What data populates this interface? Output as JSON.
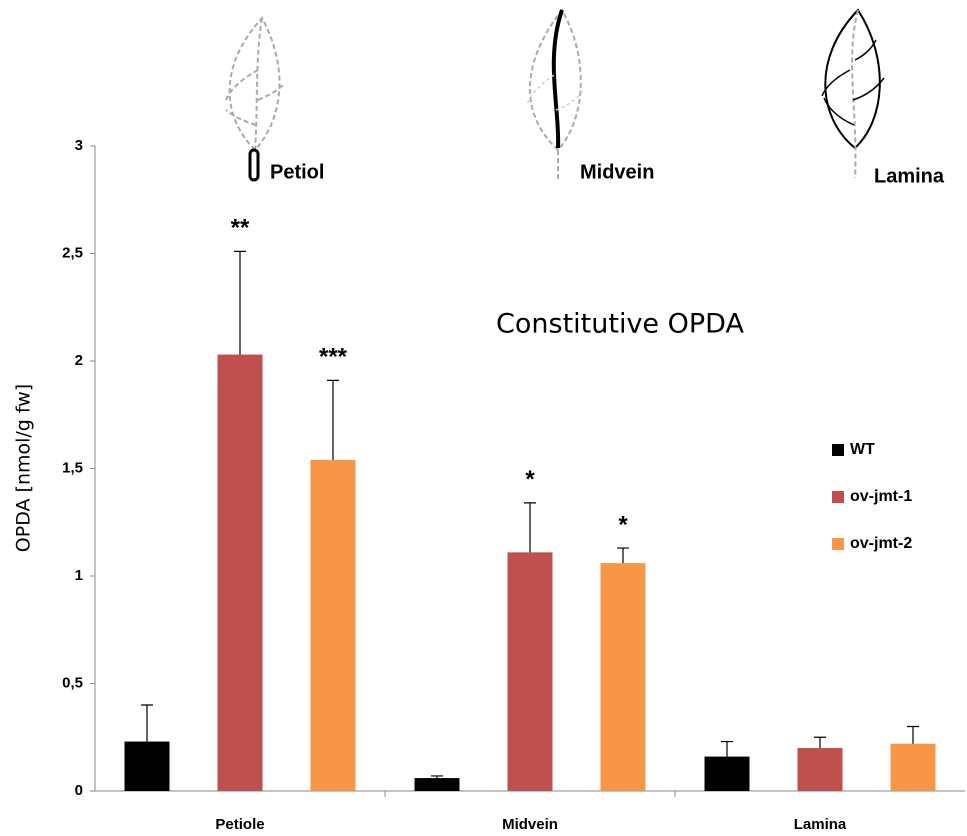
{
  "chart_data": {
    "type": "bar",
    "title": "Constitutive OPDA",
    "y_label": "OPDA [nmol/g fw]",
    "categories": [
      "Petiole",
      "Midvein",
      "Lamina"
    ],
    "leaf_labels": [
      "Petiol",
      "Midvein",
      "Lamina"
    ],
    "series": [
      {
        "name": "WT",
        "color": "#000000",
        "values": [
          0.23,
          0.06,
          0.16
        ],
        "errors": [
          0.17,
          0.01,
          0.07
        ],
        "annotations": [
          null,
          null,
          null
        ]
      },
      {
        "name": "ov-jmt-1",
        "color": "#c0504d",
        "values": [
          2.03,
          1.11,
          0.2
        ],
        "errors": [
          0.48,
          0.23,
          0.05
        ],
        "annotations": [
          "**",
          "*",
          null
        ]
      },
      {
        "name": "ov-jmt-2",
        "color": "#f79646",
        "values": [
          1.54,
          1.06,
          0.22
        ],
        "errors": [
          0.37,
          0.07,
          0.08
        ],
        "annotations": [
          "***",
          "*",
          null
        ]
      }
    ],
    "ylim": [
      0,
      3
    ],
    "yticks": [
      0,
      {
        "value": 0.5,
        "label": "0,5"
      },
      1,
      {
        "value": 1.5,
        "label": "1,5"
      },
      2,
      {
        "value": 2.5,
        "label": "2,5"
      },
      3
    ],
    "legend": "right"
  }
}
